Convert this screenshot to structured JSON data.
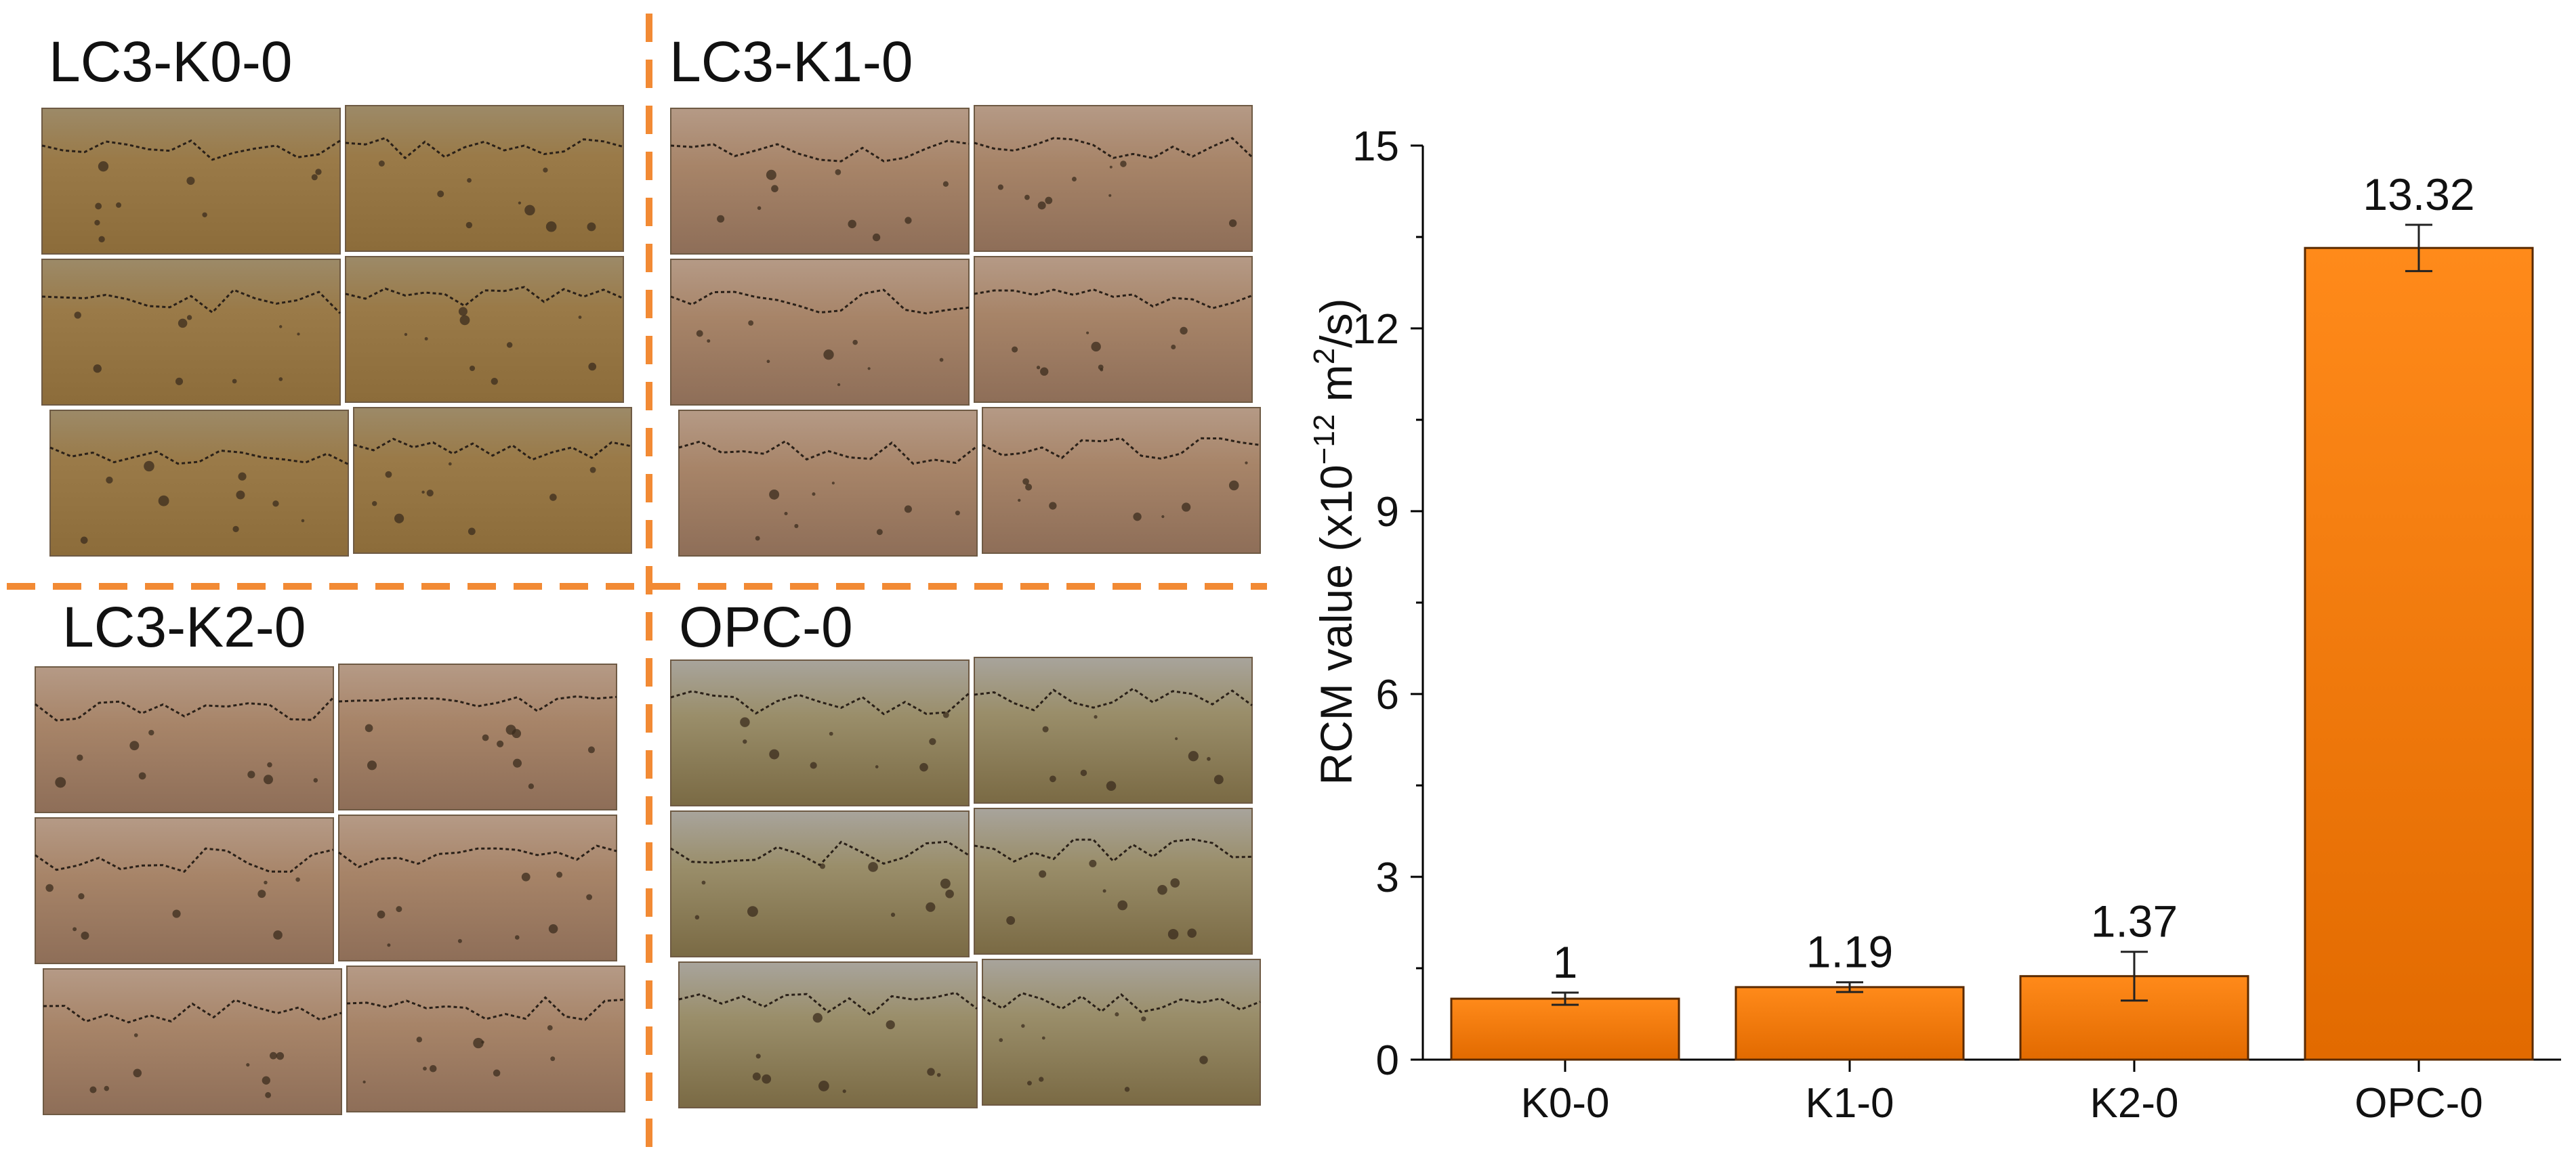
{
  "photos": {
    "panels": [
      {
        "label": "LC3-K0-0",
        "variant": "warm-yellow"
      },
      {
        "label": "LC3-K1-0",
        "variant": "pinkish"
      },
      {
        "label": "LC3-K2-0",
        "variant": "pinkish"
      },
      {
        "label": "OPC-0",
        "variant": "grey-top"
      }
    ],
    "divider_color": "#F28A34"
  },
  "chart_data": {
    "type": "bar",
    "categories": [
      "K0-0",
      "K1-0",
      "K2-0",
      "OPC-0"
    ],
    "values": [
      1.0,
      1.19,
      1.37,
      13.32
    ],
    "value_labels": [
      "1",
      "1.19",
      "1.37",
      "13.32"
    ],
    "errors": [
      0.1,
      0.08,
      0.4,
      0.38
    ],
    "ylabel_main": "RCM value (x10",
    "ylabel_exp": "−12",
    "ylabel_mid": " m",
    "ylabel_exp2": "2",
    "ylabel_tail": "/s)",
    "yticks": [
      "0",
      "3",
      "6",
      "9",
      "12",
      "15"
    ],
    "ylim": [
      0,
      15
    ],
    "bar_color_top": "#FF8A1A",
    "bar_color_bottom": "#E26A00",
    "bar_edge": "#5a2a00",
    "grid": false,
    "legend": "none"
  }
}
